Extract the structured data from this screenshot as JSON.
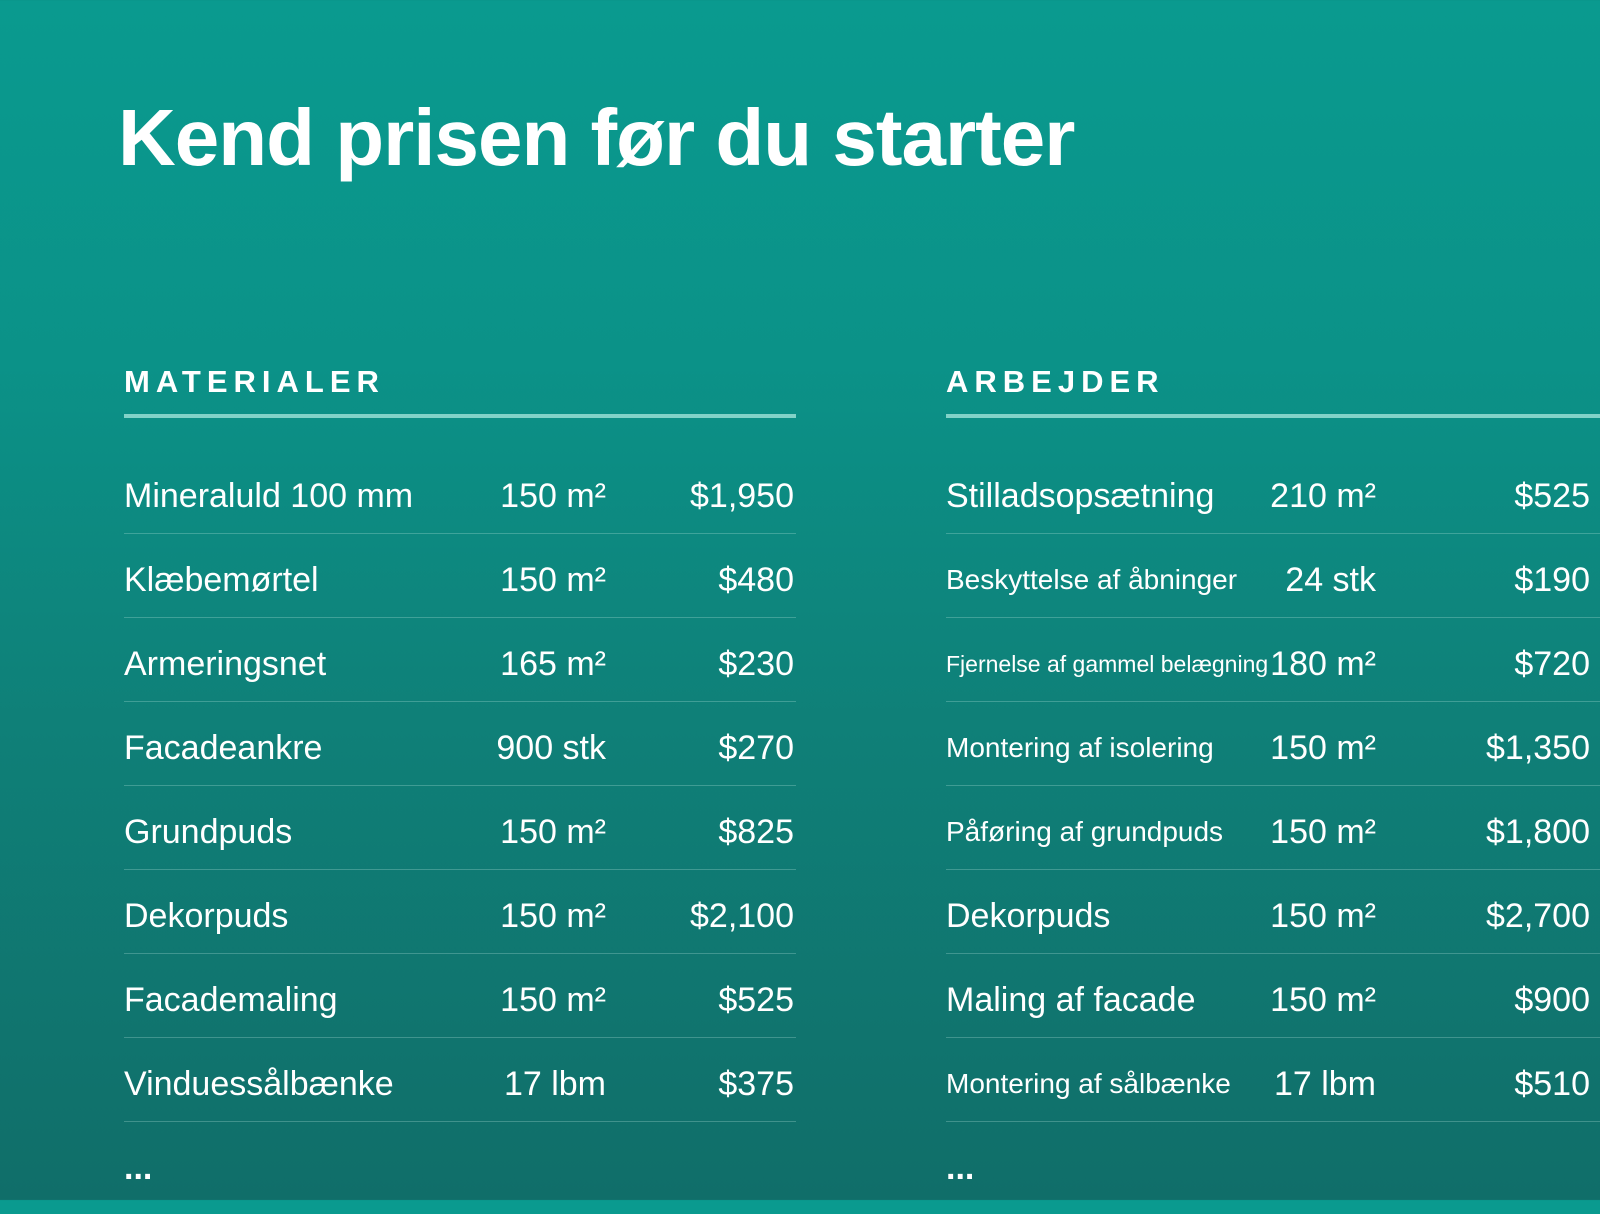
{
  "title": "Kend prisen før du starter",
  "colors": {
    "background_top": "#0a9a8f",
    "background_bottom": "#106e69",
    "header_underline": "#82d2c8",
    "text": "#ffffff"
  },
  "materials": {
    "header": "MATERIALER",
    "rows": [
      {
        "name": "Mineraluld 100 mm",
        "qty": "150 m²",
        "price": "$1,950"
      },
      {
        "name": "Klæbemørtel",
        "qty": "150 m²",
        "price": "$480"
      },
      {
        "name": "Armeringsnet",
        "qty": "165 m²",
        "price": "$230"
      },
      {
        "name": "Facadeankre",
        "qty": "900 stk",
        "price": "$270"
      },
      {
        "name": "Grundpuds",
        "qty": "150 m²",
        "price": "$825"
      },
      {
        "name": "Dekorpuds",
        "qty": "150 m²",
        "price": "$2,100"
      },
      {
        "name": "Facademaling",
        "qty": "150 m²",
        "price": "$525"
      },
      {
        "name": "Vinduessålbænke",
        "qty": "17 lbm",
        "price": "$375"
      }
    ],
    "ellipsis": "..."
  },
  "works": {
    "header": "ARBEJDER",
    "rows": [
      {
        "name": "Stilladsopsætning",
        "qty": "210 m²",
        "price": "$525"
      },
      {
        "name": "Beskyttelse af åbninger",
        "qty": "24 stk",
        "price": "$190"
      },
      {
        "name": "Fjernelse af gammel belægning",
        "qty": "180 m²",
        "price": "$720"
      },
      {
        "name": "Montering af isolering",
        "qty": "150 m²",
        "price": "$1,350"
      },
      {
        "name": "Påføring af grundpuds",
        "qty": "150 m²",
        "price": "$1,800"
      },
      {
        "name": "Dekorpuds",
        "qty": "150 m²",
        "price": "$2,700"
      },
      {
        "name": "Maling af facade",
        "qty": "150 m²",
        "price": "$900"
      },
      {
        "name": "Montering af sålbænke",
        "qty": "17 lbm",
        "price": "$510"
      }
    ],
    "ellipsis": "..."
  }
}
